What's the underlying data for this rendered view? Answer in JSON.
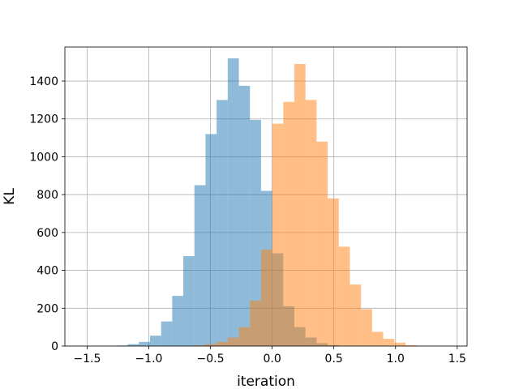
{
  "chart_data": {
    "type": "histogram",
    "title": "",
    "xlabel": "iteration",
    "ylabel": "KL",
    "xlim": [
      -1.68,
      1.58
    ],
    "ylim": [
      0,
      1580
    ],
    "xticks": [
      -1.5,
      -1.0,
      -0.5,
      0.0,
      0.5,
      1.0,
      1.5
    ],
    "xtick_labels": [
      "−1.5",
      "−1.0",
      "−0.5",
      "0.0",
      "0.5",
      "1.0",
      "1.5"
    ],
    "yticks": [
      0,
      200,
      400,
      600,
      800,
      1000,
      1200,
      1400
    ],
    "grid": true,
    "alpha": 0.5,
    "series": [
      {
        "color": "#1f77b4",
        "bin_width": 0.09,
        "bins": [
          {
            "x0": -1.26,
            "count": 3
          },
          {
            "x0": -1.17,
            "count": 10
          },
          {
            "x0": -1.08,
            "count": 22
          },
          {
            "x0": -0.99,
            "count": 55
          },
          {
            "x0": -0.9,
            "count": 130
          },
          {
            "x0": -0.81,
            "count": 265
          },
          {
            "x0": -0.72,
            "count": 475
          },
          {
            "x0": -0.63,
            "count": 850
          },
          {
            "x0": -0.54,
            "count": 1120
          },
          {
            "x0": -0.45,
            "count": 1300
          },
          {
            "x0": -0.36,
            "count": 1520
          },
          {
            "x0": -0.27,
            "count": 1375
          },
          {
            "x0": -0.18,
            "count": 1195
          },
          {
            "x0": -0.09,
            "count": 820
          },
          {
            "x0": 0.0,
            "count": 490
          },
          {
            "x0": 0.09,
            "count": 210
          },
          {
            "x0": 0.18,
            "count": 100
          },
          {
            "x0": 0.27,
            "count": 45
          },
          {
            "x0": 0.36,
            "count": 15
          },
          {
            "x0": 0.45,
            "count": 5
          }
        ]
      },
      {
        "color": "#ff7f0e",
        "bin_width": 0.09,
        "bins": [
          {
            "x0": -0.63,
            "count": 4
          },
          {
            "x0": -0.54,
            "count": 10
          },
          {
            "x0": -0.45,
            "count": 22
          },
          {
            "x0": -0.36,
            "count": 45
          },
          {
            "x0": -0.27,
            "count": 100
          },
          {
            "x0": -0.18,
            "count": 240
          },
          {
            "x0": -0.09,
            "count": 510
          },
          {
            "x0": 0.0,
            "count": 1175
          },
          {
            "x0": 0.09,
            "count": 1290
          },
          {
            "x0": 0.18,
            "count": 1490
          },
          {
            "x0": 0.27,
            "count": 1300
          },
          {
            "x0": 0.36,
            "count": 1080
          },
          {
            "x0": 0.45,
            "count": 780
          },
          {
            "x0": 0.54,
            "count": 525
          },
          {
            "x0": 0.63,
            "count": 325
          },
          {
            "x0": 0.72,
            "count": 195
          },
          {
            "x0": 0.81,
            "count": 75
          },
          {
            "x0": 0.9,
            "count": 38
          },
          {
            "x0": 0.99,
            "count": 18
          },
          {
            "x0": 1.08,
            "count": 5
          }
        ]
      }
    ]
  }
}
